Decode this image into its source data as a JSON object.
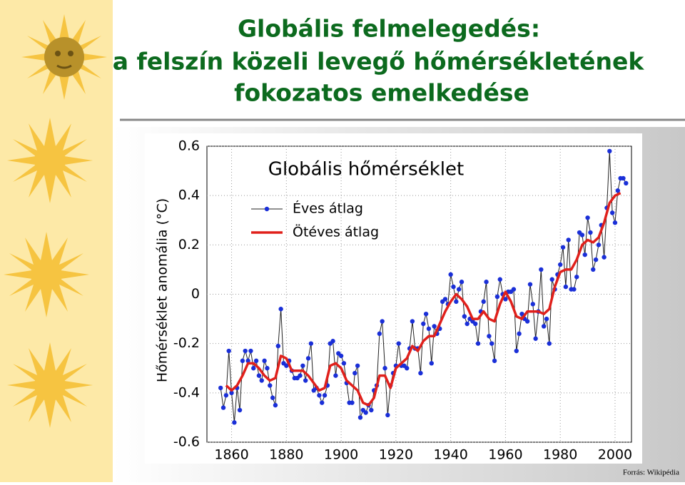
{
  "slide": {
    "title": [
      "Globális felmelegedés:",
      "a felszín közeli levegő hőmérsékletének",
      "fokozatos emelkedése"
    ],
    "source": "Forrás: Wikipédia"
  },
  "chart_data": {
    "type": "line",
    "title": "Globális hőmérséklet",
    "ylabel": "Hőmérséklet anomália (°C)",
    "xlim": [
      1851,
      2006
    ],
    "xticks": [
      1860,
      1880,
      1900,
      1920,
      1940,
      1960,
      1980,
      2000
    ],
    "ylim": [
      -0.6,
      0.6
    ],
    "yticks": [
      0.6,
      0.4,
      0.2,
      0,
      -0.2,
      -0.4,
      -0.6
    ],
    "grid": true,
    "series": [
      {
        "name": "Éves átlag",
        "color": "#1a2fd8",
        "markers": true,
        "x": [
          1856,
          1857,
          1858,
          1859,
          1860,
          1861,
          1862,
          1863,
          1864,
          1865,
          1866,
          1867,
          1868,
          1869,
          1870,
          1871,
          1872,
          1873,
          1874,
          1875,
          1876,
          1877,
          1878,
          1879,
          1880,
          1881,
          1882,
          1883,
          1884,
          1885,
          1886,
          1887,
          1888,
          1889,
          1890,
          1891,
          1892,
          1893,
          1894,
          1895,
          1896,
          1897,
          1898,
          1899,
          1900,
          1901,
          1902,
          1903,
          1904,
          1905,
          1906,
          1907,
          1908,
          1909,
          1910,
          1911,
          1912,
          1913,
          1914,
          1915,
          1916,
          1917,
          1918,
          1919,
          1920,
          1921,
          1922,
          1923,
          1924,
          1925,
          1926,
          1927,
          1928,
          1929,
          1930,
          1931,
          1932,
          1933,
          1934,
          1935,
          1936,
          1937,
          1938,
          1939,
          1940,
          1941,
          1942,
          1943,
          1944,
          1945,
          1946,
          1947,
          1948,
          1949,
          1950,
          1951,
          1952,
          1953,
          1954,
          1955,
          1956,
          1957,
          1958,
          1959,
          1960,
          1961,
          1962,
          1963,
          1964,
          1965,
          1966,
          1967,
          1968,
          1969,
          1970,
          1971,
          1972,
          1973,
          1974,
          1975,
          1976,
          1977,
          1978,
          1979,
          1980,
          1981,
          1982,
          1983,
          1984,
          1985,
          1986,
          1987,
          1988,
          1989,
          1990,
          1991,
          1992,
          1993,
          1994,
          1995,
          1996,
          1997,
          1998,
          1999,
          2000,
          2001,
          2002,
          2003,
          2004
        ],
        "values": [
          -0.38,
          -0.46,
          -0.41,
          -0.23,
          -0.4,
          -0.52,
          -0.38,
          -0.47,
          -0.27,
          -0.23,
          -0.27,
          -0.23,
          -0.3,
          -0.27,
          -0.33,
          -0.35,
          -0.27,
          -0.3,
          -0.37,
          -0.42,
          -0.45,
          -0.21,
          -0.06,
          -0.28,
          -0.29,
          -0.27,
          -0.31,
          -0.34,
          -0.34,
          -0.33,
          -0.29,
          -0.35,
          -0.26,
          -0.2,
          -0.39,
          -0.38,
          -0.41,
          -0.44,
          -0.41,
          -0.37,
          -0.2,
          -0.19,
          -0.33,
          -0.24,
          -0.25,
          -0.28,
          -0.36,
          -0.44,
          -0.44,
          -0.32,
          -0.29,
          -0.5,
          -0.47,
          -0.48,
          -0.45,
          -0.47,
          -0.39,
          -0.37,
          -0.16,
          -0.11,
          -0.3,
          -0.49,
          -0.37,
          -0.32,
          -0.29,
          -0.2,
          -0.29,
          -0.29,
          -0.3,
          -0.22,
          -0.11,
          -0.22,
          -0.22,
          -0.32,
          -0.12,
          -0.08,
          -0.14,
          -0.28,
          -0.13,
          -0.16,
          -0.14,
          -0.03,
          -0.02,
          -0.04,
          0.08,
          0.03,
          -0.03,
          0.02,
          0.05,
          -0.09,
          -0.12,
          -0.1,
          -0.11,
          -0.12,
          -0.2,
          -0.07,
          -0.03,
          0.05,
          -0.17,
          -0.2,
          -0.27,
          -0.01,
          0.06,
          0.0,
          -0.02,
          0.01,
          0.01,
          0.02,
          -0.23,
          -0.16,
          -0.08,
          -0.1,
          -0.11,
          0.04,
          -0.04,
          -0.18,
          -0.07,
          0.1,
          -0.13,
          -0.1,
          -0.2,
          0.06,
          0.02,
          0.08,
          0.12,
          0.19,
          0.03,
          0.22,
          0.02,
          0.02,
          0.07,
          0.25,
          0.24,
          0.16,
          0.31,
          0.25,
          0.1,
          0.14,
          0.2,
          0.28,
          0.15,
          0.35,
          0.58,
          0.33,
          0.29,
          0.42,
          0.47,
          0.47,
          0.45
        ]
      },
      {
        "name": "Ötéves átlag",
        "color": "#e0201b",
        "markers": false,
        "x": [
          1858,
          1860,
          1862,
          1864,
          1866,
          1868,
          1870,
          1872,
          1874,
          1876,
          1878,
          1880,
          1882,
          1884,
          1886,
          1888,
          1890,
          1892,
          1894,
          1896,
          1898,
          1900,
          1902,
          1904,
          1906,
          1908,
          1910,
          1912,
          1914,
          1916,
          1918,
          1920,
          1922,
          1924,
          1926,
          1928,
          1930,
          1932,
          1934,
          1936,
          1938,
          1940,
          1942,
          1944,
          1946,
          1948,
          1950,
          1952,
          1954,
          1956,
          1958,
          1960,
          1962,
          1964,
          1966,
          1968,
          1970,
          1972,
          1974,
          1976,
          1978,
          1980,
          1982,
          1984,
          1986,
          1988,
          1990,
          1992,
          1994,
          1996,
          1998,
          2000,
          2002
        ],
        "values": [
          -0.37,
          -0.39,
          -0.37,
          -0.33,
          -0.28,
          -0.28,
          -0.3,
          -0.33,
          -0.35,
          -0.34,
          -0.25,
          -0.26,
          -0.31,
          -0.31,
          -0.31,
          -0.33,
          -0.36,
          -0.39,
          -0.38,
          -0.29,
          -0.28,
          -0.3,
          -0.35,
          -0.37,
          -0.39,
          -0.44,
          -0.45,
          -0.42,
          -0.33,
          -0.33,
          -0.38,
          -0.3,
          -0.28,
          -0.26,
          -0.21,
          -0.23,
          -0.19,
          -0.17,
          -0.17,
          -0.12,
          -0.07,
          -0.03,
          0.0,
          -0.02,
          -0.05,
          -0.1,
          -0.1,
          -0.07,
          -0.1,
          -0.11,
          -0.04,
          0.01,
          -0.03,
          -0.09,
          -0.1,
          -0.07,
          -0.07,
          -0.07,
          -0.08,
          -0.06,
          0.03,
          0.09,
          0.1,
          0.1,
          0.14,
          0.2,
          0.22,
          0.21,
          0.23,
          0.29,
          0.37,
          0.4,
          0.41
        ]
      }
    ]
  }
}
